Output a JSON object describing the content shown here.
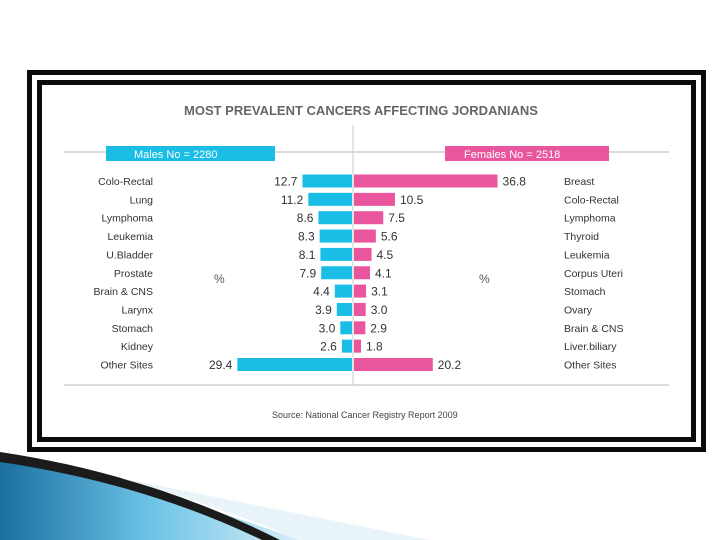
{
  "colors": {
    "male": "#19bde6",
    "female": "#e9569d",
    "frame": "#0b0b0b",
    "text": "#333333",
    "title": "#666666"
  },
  "chart_data": {
    "type": "bar",
    "title": "MOST PREVALENT CANCERS AFFECTING JORDANIANS",
    "source": "Source: National Cancer Registry Report 2009",
    "unit_label": "%",
    "xlim": [
      0,
      40
    ],
    "males": {
      "header": "Males No = 2280",
      "categories": [
        "Colo-Rectal",
        "Lung",
        "Lymphoma",
        "Leukemia",
        "U.Bladder",
        "Prostate",
        "Brain & CNS",
        "Larynx",
        "Stomach",
        "Kidney",
        "Other Sites"
      ],
      "values": [
        12.7,
        11.2,
        8.6,
        8.3,
        8.1,
        7.9,
        4.4,
        3.9,
        3.0,
        2.6,
        29.4
      ],
      "labels": [
        "12.7",
        "11.2",
        "8.6",
        "8.3",
        "8.1",
        "7.9",
        "4.4",
        "3.9",
        "3.0",
        "2.6",
        "29.4"
      ]
    },
    "females": {
      "header": "Females No = 2518",
      "categories": [
        "Breast",
        "Colo-Rectal",
        "Lymphoma",
        "Thyroid",
        "Leukemia",
        "Corpus Uteri",
        "Stomach",
        "Ovary",
        "Brain & CNS",
        "Liver.biliary",
        "Other Sites"
      ],
      "values": [
        36.8,
        10.5,
        7.5,
        5.6,
        4.5,
        4.1,
        3.1,
        3.0,
        2.9,
        1.8,
        20.2
      ],
      "labels": [
        "36.8",
        "10.5",
        "7.5",
        "5.6",
        "4.5",
        "4.1",
        "3.1",
        "3.0",
        "2.9",
        "1.8",
        "20.2"
      ]
    }
  }
}
